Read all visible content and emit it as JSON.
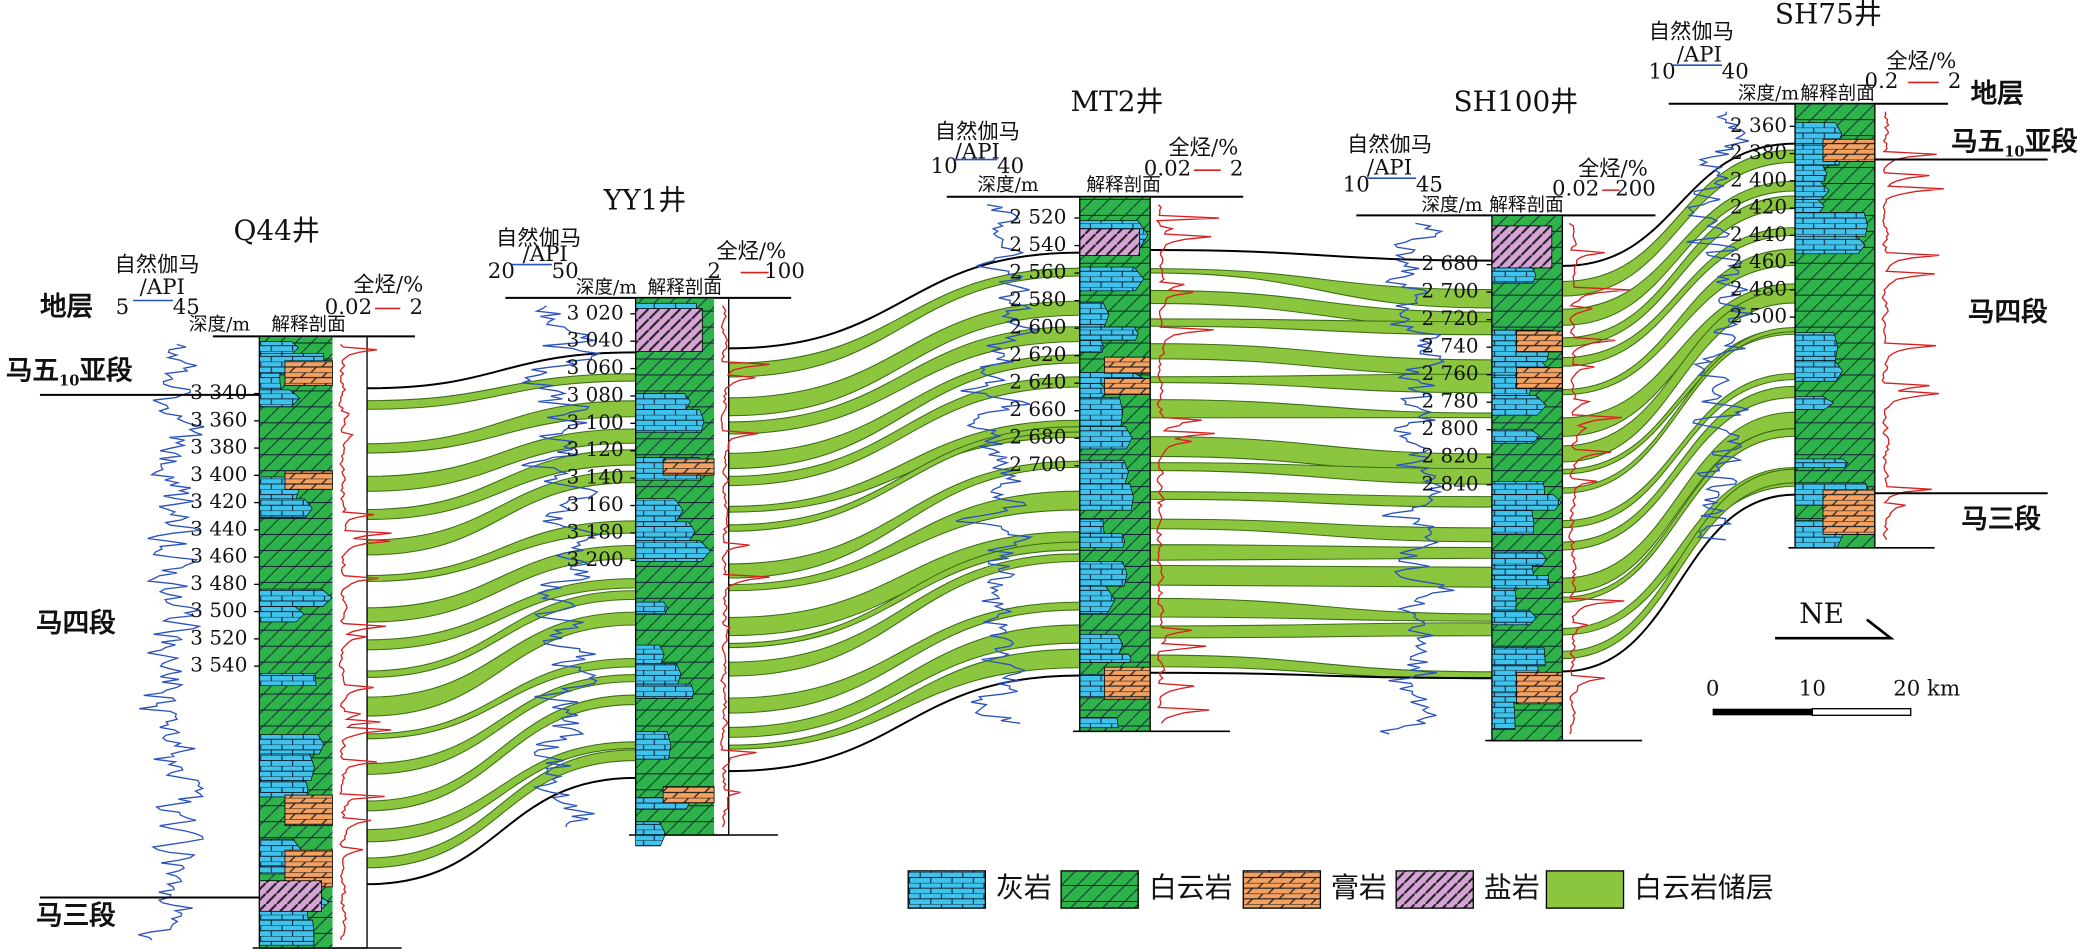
{
  "wells": [
    {
      "name": "Q44井",
      "gamma": {
        "label": "自然伽马",
        "unit": "/API",
        "min": "5",
        "max": "45"
      },
      "hc": {
        "label": "全烃/%",
        "min": "0.02",
        "max": "2"
      },
      "depth_label": "深度/m",
      "profile_label": "解释剖面",
      "depths": [
        "3 340",
        "3 360",
        "3 380",
        "3 400",
        "3 420",
        "3 440",
        "3 460",
        "3 480",
        "3 500",
        "3 520",
        "3 540"
      ]
    },
    {
      "name": "YY1井",
      "gamma": {
        "label": "自然伽马",
        "unit": "/API",
        "min": "20",
        "max": "50"
      },
      "hc": {
        "label": "全烃/%",
        "min": "2",
        "max": "100"
      },
      "depth_label": "深度/m",
      "profile_label": "解释剖面",
      "depths": [
        "3 020",
        "3 040",
        "3 060",
        "3 080",
        "3 100",
        "3 120",
        "3 140",
        "3 160",
        "3 180",
        "3 200"
      ]
    },
    {
      "name": "MT2井",
      "gamma": {
        "label": "自然伽马",
        "unit": "/API",
        "min": "10",
        "max": "40"
      },
      "hc": {
        "label": "全烃/%",
        "min": "0.02",
        "max": "2"
      },
      "depth_label": "深度/m",
      "profile_label": "解释剖面",
      "depths": [
        "2 520",
        "2 540",
        "2 560",
        "2 580",
        "2 600",
        "2 620",
        "2 640",
        "2 660",
        "2 680",
        "2 700"
      ]
    },
    {
      "name": "SH100井",
      "gamma": {
        "label": "自然伽马",
        "unit": "/API",
        "min": "10",
        "max": "45"
      },
      "hc": {
        "label": "全烃/%",
        "min": "0.02",
        "max": "200"
      },
      "depth_label": "深度/m",
      "profile_label": "解释剖面",
      "depths": [
        "2 680",
        "2 700",
        "2 720",
        "2 740",
        "2 760",
        "2 780",
        "2 800",
        "2 820",
        "2 840"
      ]
    },
    {
      "name": "SH75井",
      "gamma": {
        "label": "自然伽马",
        "unit": "/API",
        "min": "10",
        "max": "40"
      },
      "hc": {
        "label": "全烃/%",
        "min": "0.2",
        "max": "2"
      },
      "depth_label": "深度/m",
      "profile_label": "解释剖面",
      "depths": [
        "2 360",
        "2 380",
        "2 400",
        "2 420",
        "2 440",
        "2 460",
        "2 480",
        "2 500"
      ]
    }
  ],
  "strata": {
    "left": {
      "header": "地层",
      "ma5": {
        "main": "马五",
        "sub": "10",
        "tail": "亚段"
      },
      "ma4": "马四段",
      "ma3": "马三段"
    },
    "right": {
      "header": "地层",
      "ma5": {
        "main": "马五",
        "sub": "10",
        "tail": "亚段"
      },
      "ma4": "马四段",
      "ma3": "马三段"
    }
  },
  "legend": [
    "灰岩",
    "白云岩",
    "膏岩",
    "盐岩",
    "白云岩储层"
  ],
  "orientation": "NE",
  "scale": [
    "0",
    "10",
    "20 km"
  ]
}
